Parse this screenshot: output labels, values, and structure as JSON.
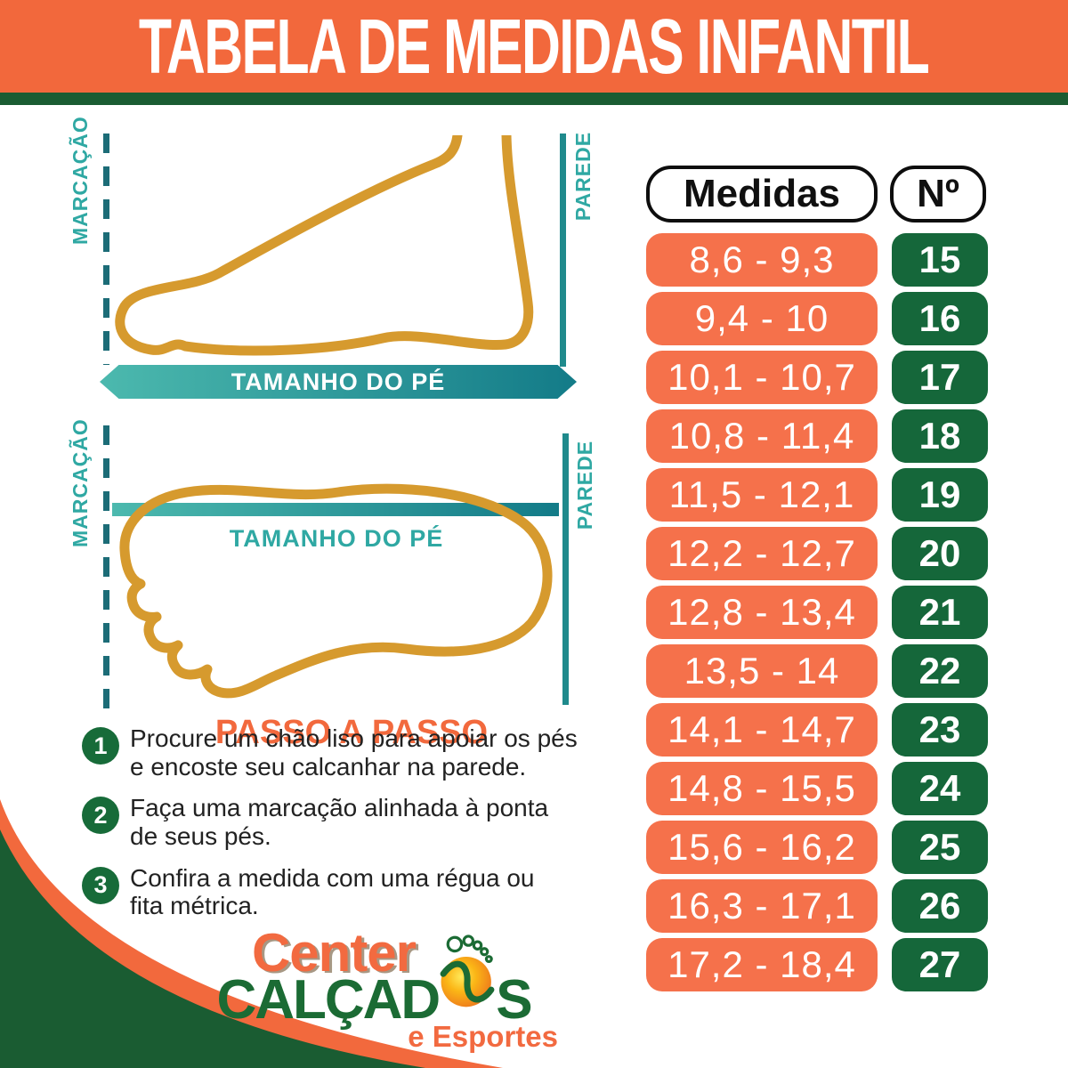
{
  "header": {
    "title": "TABELA DE MEDIDAS INFANTIL"
  },
  "diagrams": {
    "side_view": {
      "marcacao_label": "MARCAÇÃO",
      "parede_label": "PAREDE",
      "arrow_label": "TAMANHO DO PÉ"
    },
    "top_view": {
      "marcacao_label": "MARCAÇÃO",
      "parede_label": "PAREDE",
      "bar_label": "TAMANHO DO PÉ"
    }
  },
  "steps": {
    "heading": "PASSO A PASSO",
    "items": [
      {
        "num": "1",
        "line1": "Procure um chão liso para apoiar os pés",
        "line2": "e encoste seu calcanhar na parede."
      },
      {
        "num": "2",
        "line1": "Faça uma marcação alinhada à ponta",
        "line2": "de seus pés."
      },
      {
        "num": "3",
        "line1": "Confira a medida com uma régua ou",
        "line2": "fita métrica."
      }
    ]
  },
  "logo": {
    "brand_top": "Center",
    "brand_main_pre": "CALÇAD",
    "brand_main_post": "S",
    "brand_sub": "e Esportes"
  },
  "size_table": {
    "measures_header": "Medidas",
    "number_header": "Nº",
    "rows": [
      {
        "range": "8,6 - 9,3",
        "size": "15"
      },
      {
        "range": "9,4 - 10",
        "size": "16"
      },
      {
        "range": "10,1 - 10,7",
        "size": "17"
      },
      {
        "range": "10,8 - 11,4",
        "size": "18"
      },
      {
        "range": "11,5 - 12,1",
        "size": "19"
      },
      {
        "range": "12,2 - 12,7",
        "size": "20"
      },
      {
        "range": "12,8 - 13,4",
        "size": "21"
      },
      {
        "range": "13,5 - 14",
        "size": "22"
      },
      {
        "range": "14,1 - 14,7",
        "size": "23"
      },
      {
        "range": "14,8 - 15,5",
        "size": "24"
      },
      {
        "range": "15,6 - 16,2",
        "size": "25"
      },
      {
        "range": "16,3 - 17,1",
        "size": "26"
      },
      {
        "range": "17,2 - 18,4",
        "size": "27"
      }
    ]
  },
  "colors": {
    "header_orange": "#F2683C",
    "row_orange": "#F5714B",
    "cell_green": "#15673A",
    "strip_green": "#1A5C32",
    "teal": "#2FA8A3",
    "teal_dark": "#17798A",
    "foot_outline": "#D69A2E"
  }
}
